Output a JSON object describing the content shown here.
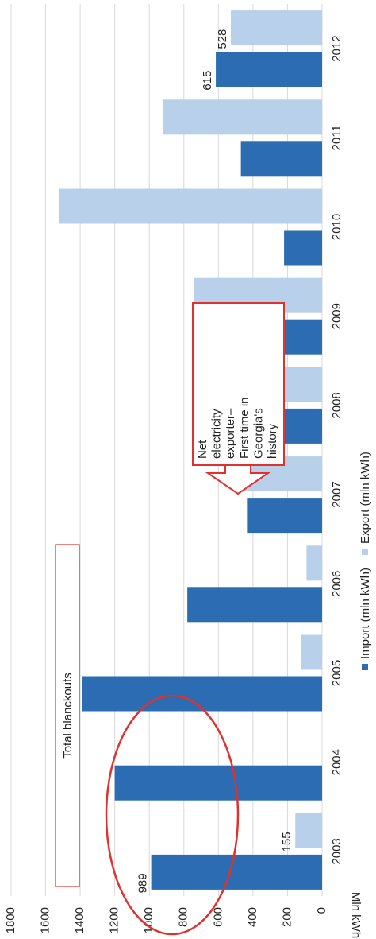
{
  "chart_data": {
    "type": "bar",
    "y_label": "Mln kWh",
    "categories": [
      "2003",
      "2004",
      "2005",
      "2006",
      "2007",
      "2008",
      "2009",
      "2010",
      "2011",
      "2012"
    ],
    "series": [
      {
        "name": "Import (mln kWh)",
        "color": "#2b6cb3",
        "values": [
          989,
          1200,
          1390,
          780,
          430,
          650,
          260,
          220,
          470,
          615
        ],
        "labeled_indices": [
          0,
          9
        ]
      },
      {
        "name": "Export (mln kWh)",
        "color": "#b8d0ea",
        "values": [
          155,
          0,
          120,
          90,
          490,
          670,
          740,
          1520,
          920,
          528
        ],
        "labeled_indices": [
          0,
          9
        ]
      }
    ],
    "ylim": [
      0,
      1800
    ],
    "yticks": [
      0,
      200,
      400,
      600,
      800,
      1000,
      1200,
      1400,
      1600,
      1800
    ],
    "grid": true,
    "annotations": {
      "blackouts": "Total blanckouts",
      "exporter": [
        "Net",
        "electricity",
        "exporter–",
        "First time in",
        "Georgia's",
        "history"
      ]
    },
    "annotation_color": "#e0312f"
  }
}
